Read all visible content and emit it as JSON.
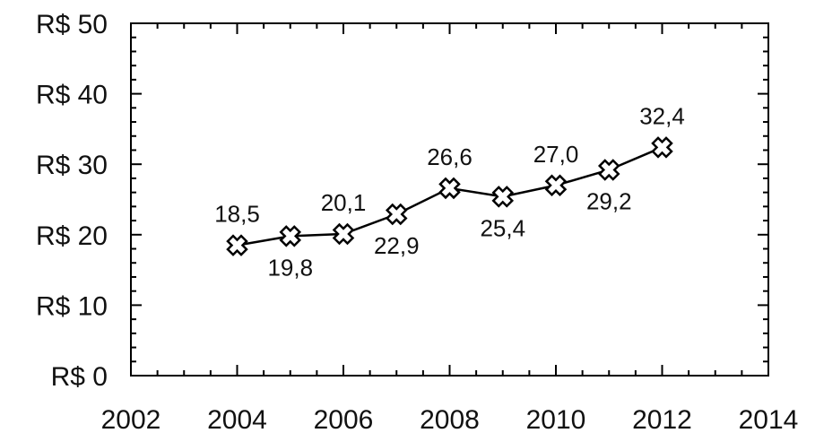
{
  "chart_data": {
    "type": "line",
    "title": "",
    "xlabel": "",
    "ylabel": "",
    "x": [
      2004,
      2005,
      2006,
      2007,
      2008,
      2009,
      2010,
      2011,
      2012
    ],
    "series": [
      {
        "values": [
          18.5,
          19.8,
          20.1,
          22.9,
          26.6,
          25.4,
          27.0,
          29.2,
          32.4
        ],
        "labels": [
          "18,5",
          "19,8",
          "20,1",
          "22,9",
          "26,6",
          "25,4",
          "27,0",
          "29,2",
          "32,4"
        ],
        "label_positions": [
          "above",
          "below",
          "above",
          "below",
          "above",
          "below",
          "above",
          "below",
          "above"
        ],
        "marker": "x-cross",
        "color": "#000000"
      }
    ],
    "xlim": [
      2002,
      2014
    ],
    "ylim": [
      0,
      50
    ],
    "x_ticks": [
      2002,
      2004,
      2006,
      2008,
      2010,
      2012,
      2014
    ],
    "x_tick_labels": [
      "2002",
      "2004",
      "2006",
      "2008",
      "2010",
      "2012",
      "2014"
    ],
    "y_ticks": [
      0,
      10,
      20,
      30,
      40,
      50
    ],
    "y_tick_labels": [
      "R$ 0",
      "R$ 10",
      "R$ 20",
      "R$ 30",
      "R$ 40",
      "R$ 50"
    ],
    "grid": false,
    "legend": "none"
  }
}
